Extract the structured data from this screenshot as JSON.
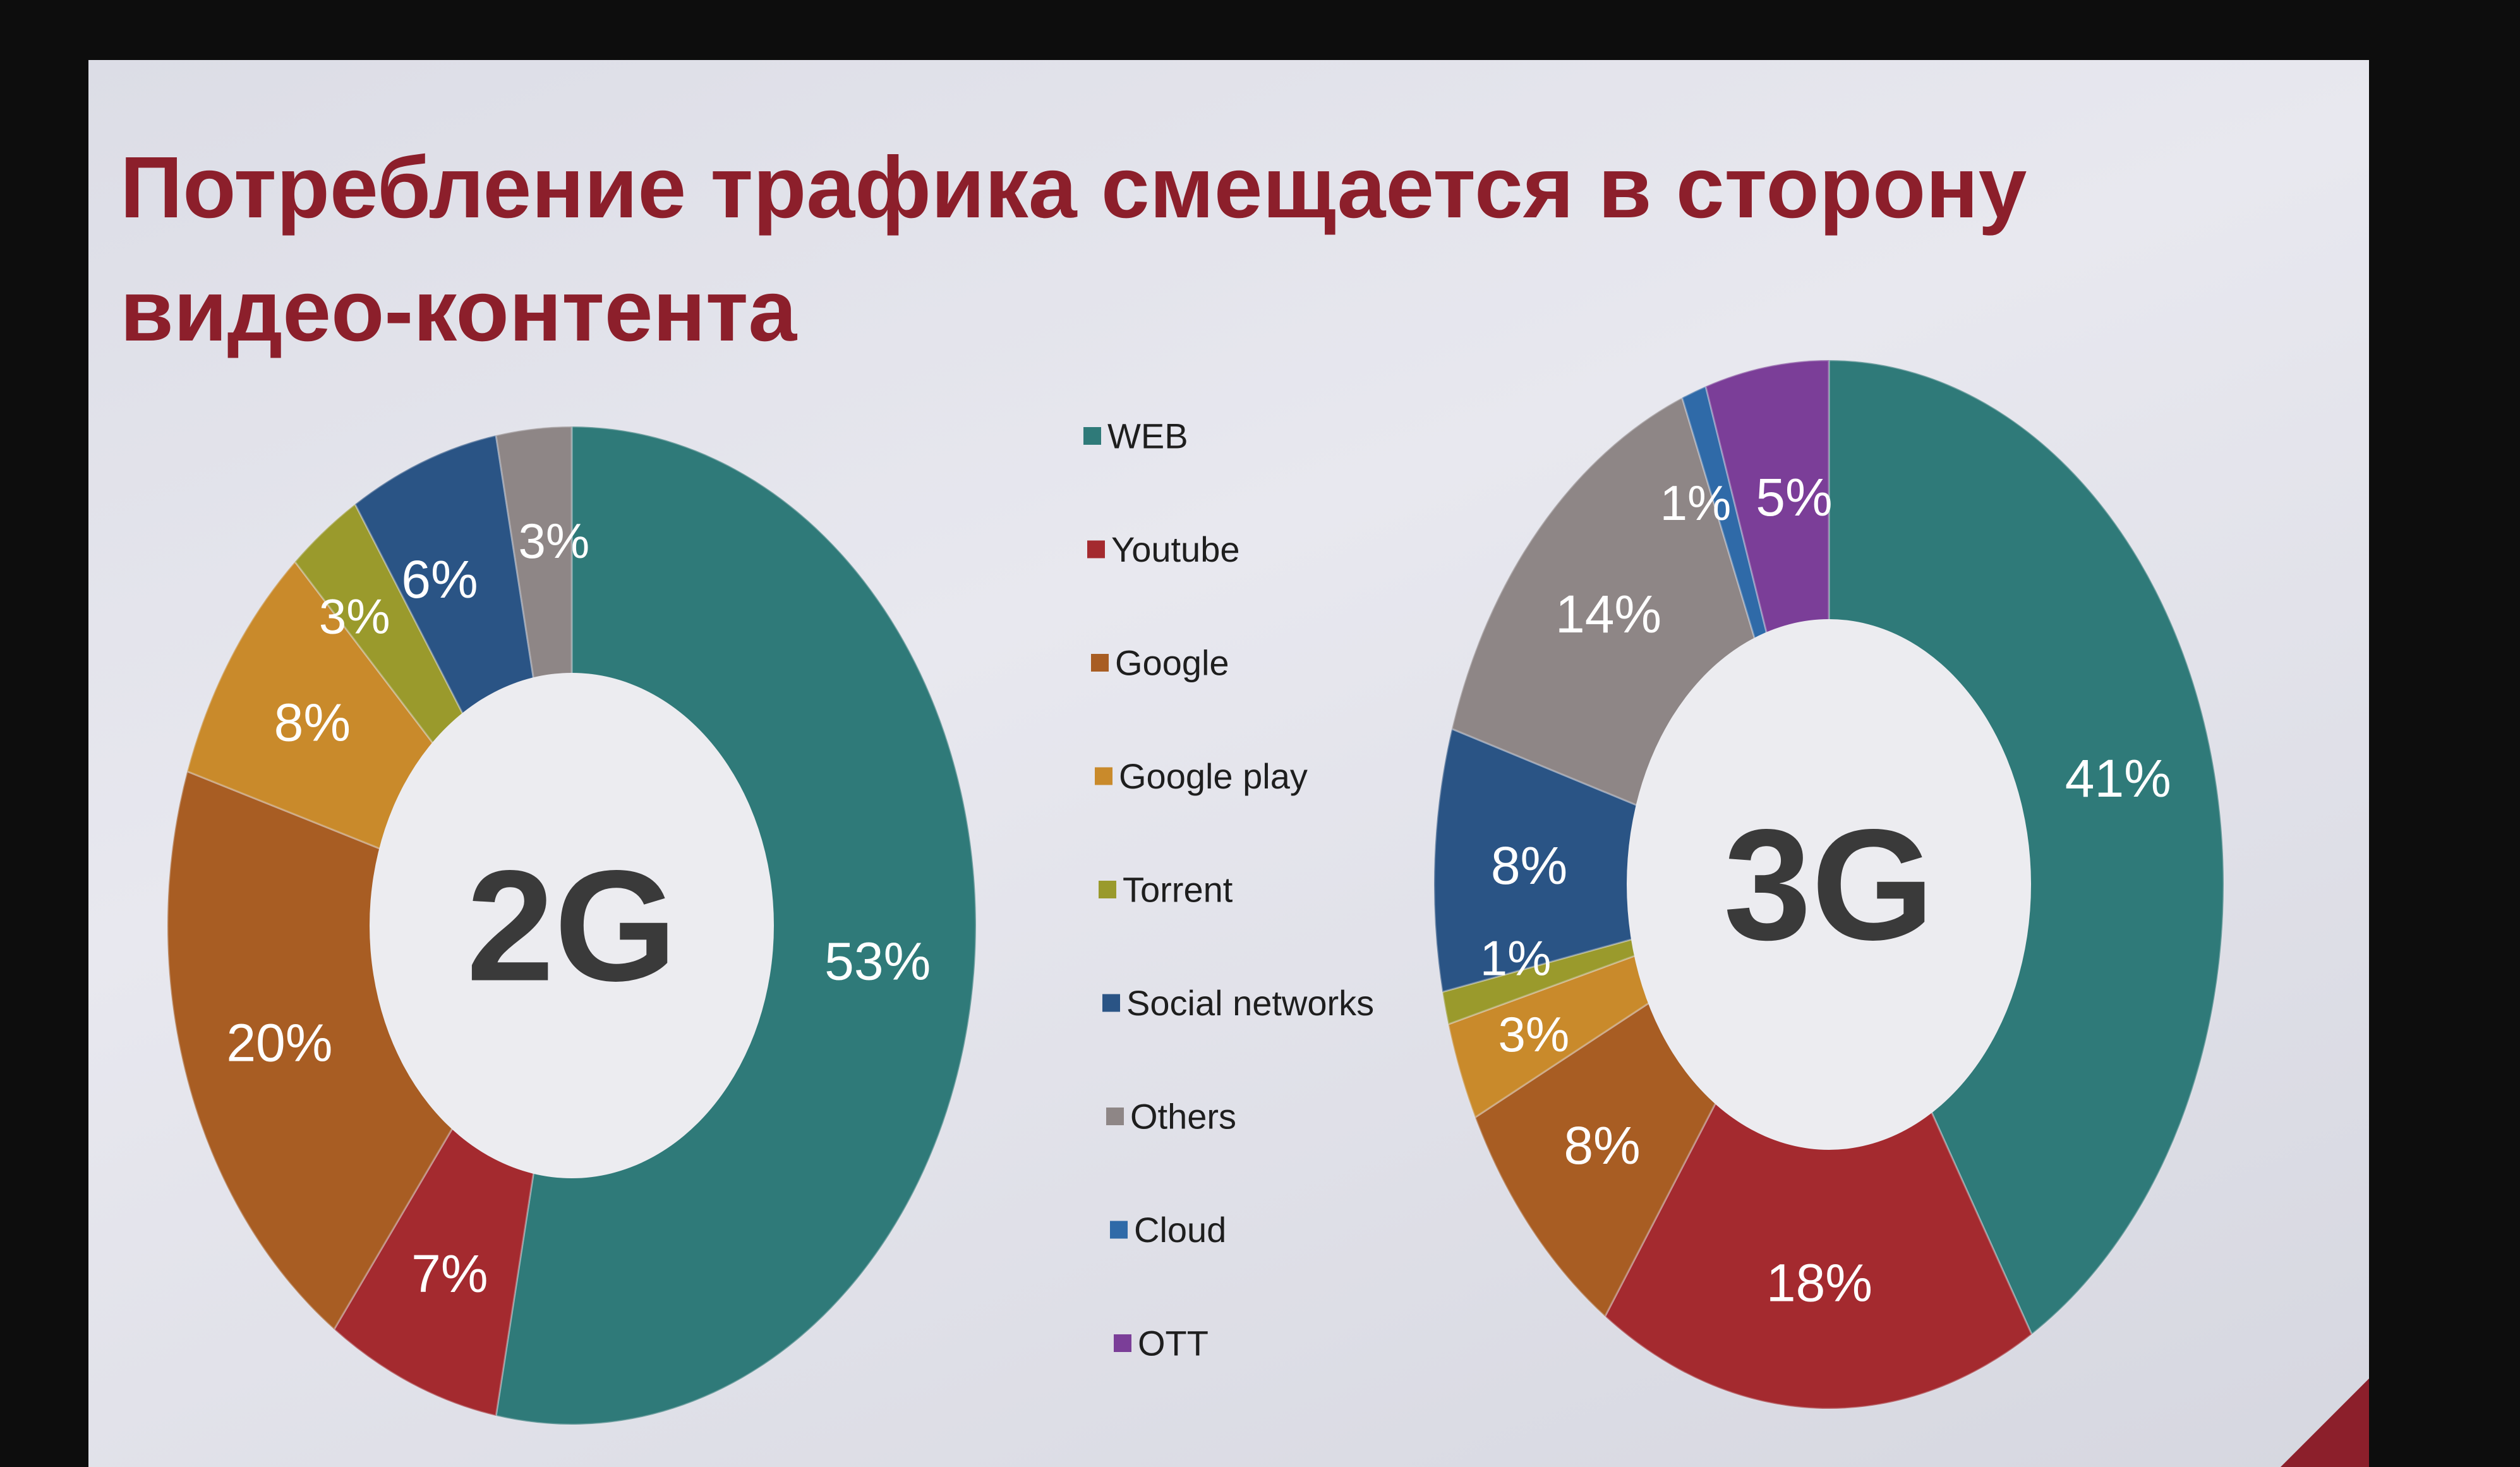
{
  "slide": {
    "title": "Потребление трафика смещается в сторону видео-контента"
  },
  "legend": [
    {
      "label": "WEB",
      "color": "#2f7a79"
    },
    {
      "label": "Youtube",
      "color": "#a42a2f"
    },
    {
      "label": "Google",
      "color": "#a85d23"
    },
    {
      "label": "Google play",
      "color": "#c98a2b"
    },
    {
      "label": "Torrent",
      "color": "#9a9a2c"
    },
    {
      "label": "Social networks",
      "color": "#2a5485"
    },
    {
      "label": "Others",
      "color": "#8e8686"
    },
    {
      "label": "Cloud",
      "color": "#2f6aa8"
    },
    {
      "label": "OTT",
      "color": "#7b3e98"
    }
  ],
  "chart_data": [
    {
      "type": "pie",
      "center_label": "2G",
      "slices": [
        {
          "category": "WEB",
          "value": 53,
          "label": "53%"
        },
        {
          "category": "Youtube",
          "value": 7,
          "label": "7%"
        },
        {
          "category": "Google",
          "value": 20,
          "label": "20%"
        },
        {
          "category": "Google play",
          "value": 8,
          "label": "8%"
        },
        {
          "category": "Torrent",
          "value": 3,
          "label": "3%"
        },
        {
          "category": "Social networks",
          "value": 6,
          "label": "6%"
        },
        {
          "category": "Others",
          "value": 3,
          "label": "3%"
        }
      ]
    },
    {
      "type": "pie",
      "center_label": "3G",
      "slices": [
        {
          "category": "WEB",
          "value": 41,
          "label": "41%"
        },
        {
          "category": "Youtube",
          "value": 18,
          "label": "18%"
        },
        {
          "category": "Google",
          "value": 8,
          "label": "8%"
        },
        {
          "category": "Google play",
          "value": 3,
          "label": "3%"
        },
        {
          "category": "Torrent",
          "value": 1,
          "label": "1%"
        },
        {
          "category": "Social networks",
          "value": 8,
          "label": "8%"
        },
        {
          "category": "Others",
          "value": 14,
          "label": "14%"
        },
        {
          "category": "Cloud",
          "value": 1,
          "label": "1%"
        },
        {
          "category": "OTT",
          "value": 5,
          "label": "5%"
        }
      ]
    }
  ]
}
